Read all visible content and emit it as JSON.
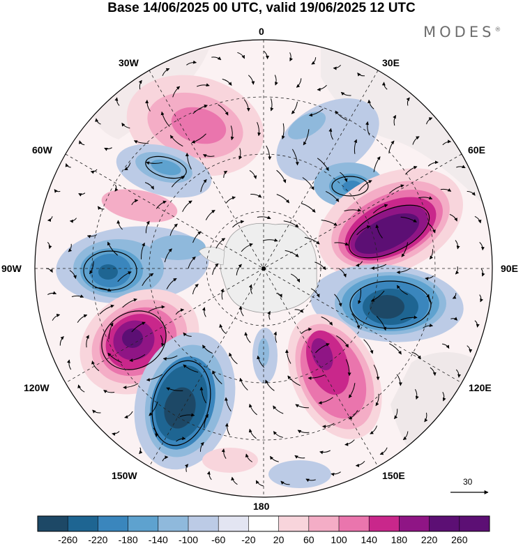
{
  "title": "Base 14/06/2025 00 UTC, valid 19/06/2025 12 UTC",
  "brand": "MODES",
  "brand_mark": "®",
  "longitude_labels": {
    "top": "0",
    "bottom": "180",
    "left": "90W",
    "right": "90E",
    "upper_left": "30W",
    "upper_left2": "60W",
    "upper_right": "30E",
    "upper_right2": "60E",
    "lower_left": "120W",
    "lower_left2": "150W",
    "lower_right": "120E",
    "lower_right2": "150E"
  },
  "vector_scale": {
    "label": "30"
  },
  "colorbar": {
    "ticks": [
      "-260",
      "-220",
      "-180",
      "-140",
      "-100",
      "-60",
      "-20",
      "20",
      "60",
      "100",
      "140",
      "180",
      "220",
      "260"
    ],
    "colors": [
      "#1d4866",
      "#1e6592",
      "#3a86bd",
      "#5ea2cf",
      "#8fb9dc",
      "#bccbe6",
      "#e3e5f2",
      "#ffffff",
      "#f8d5dc",
      "#f4adc6",
      "#ea75ad",
      "#c9278b",
      "#8f1585",
      "#5c0f74"
    ]
  },
  "map_colors": {
    "land": "#ececec",
    "coast": "#8a8a8a",
    "antarctica": "#eeeeee"
  }
}
